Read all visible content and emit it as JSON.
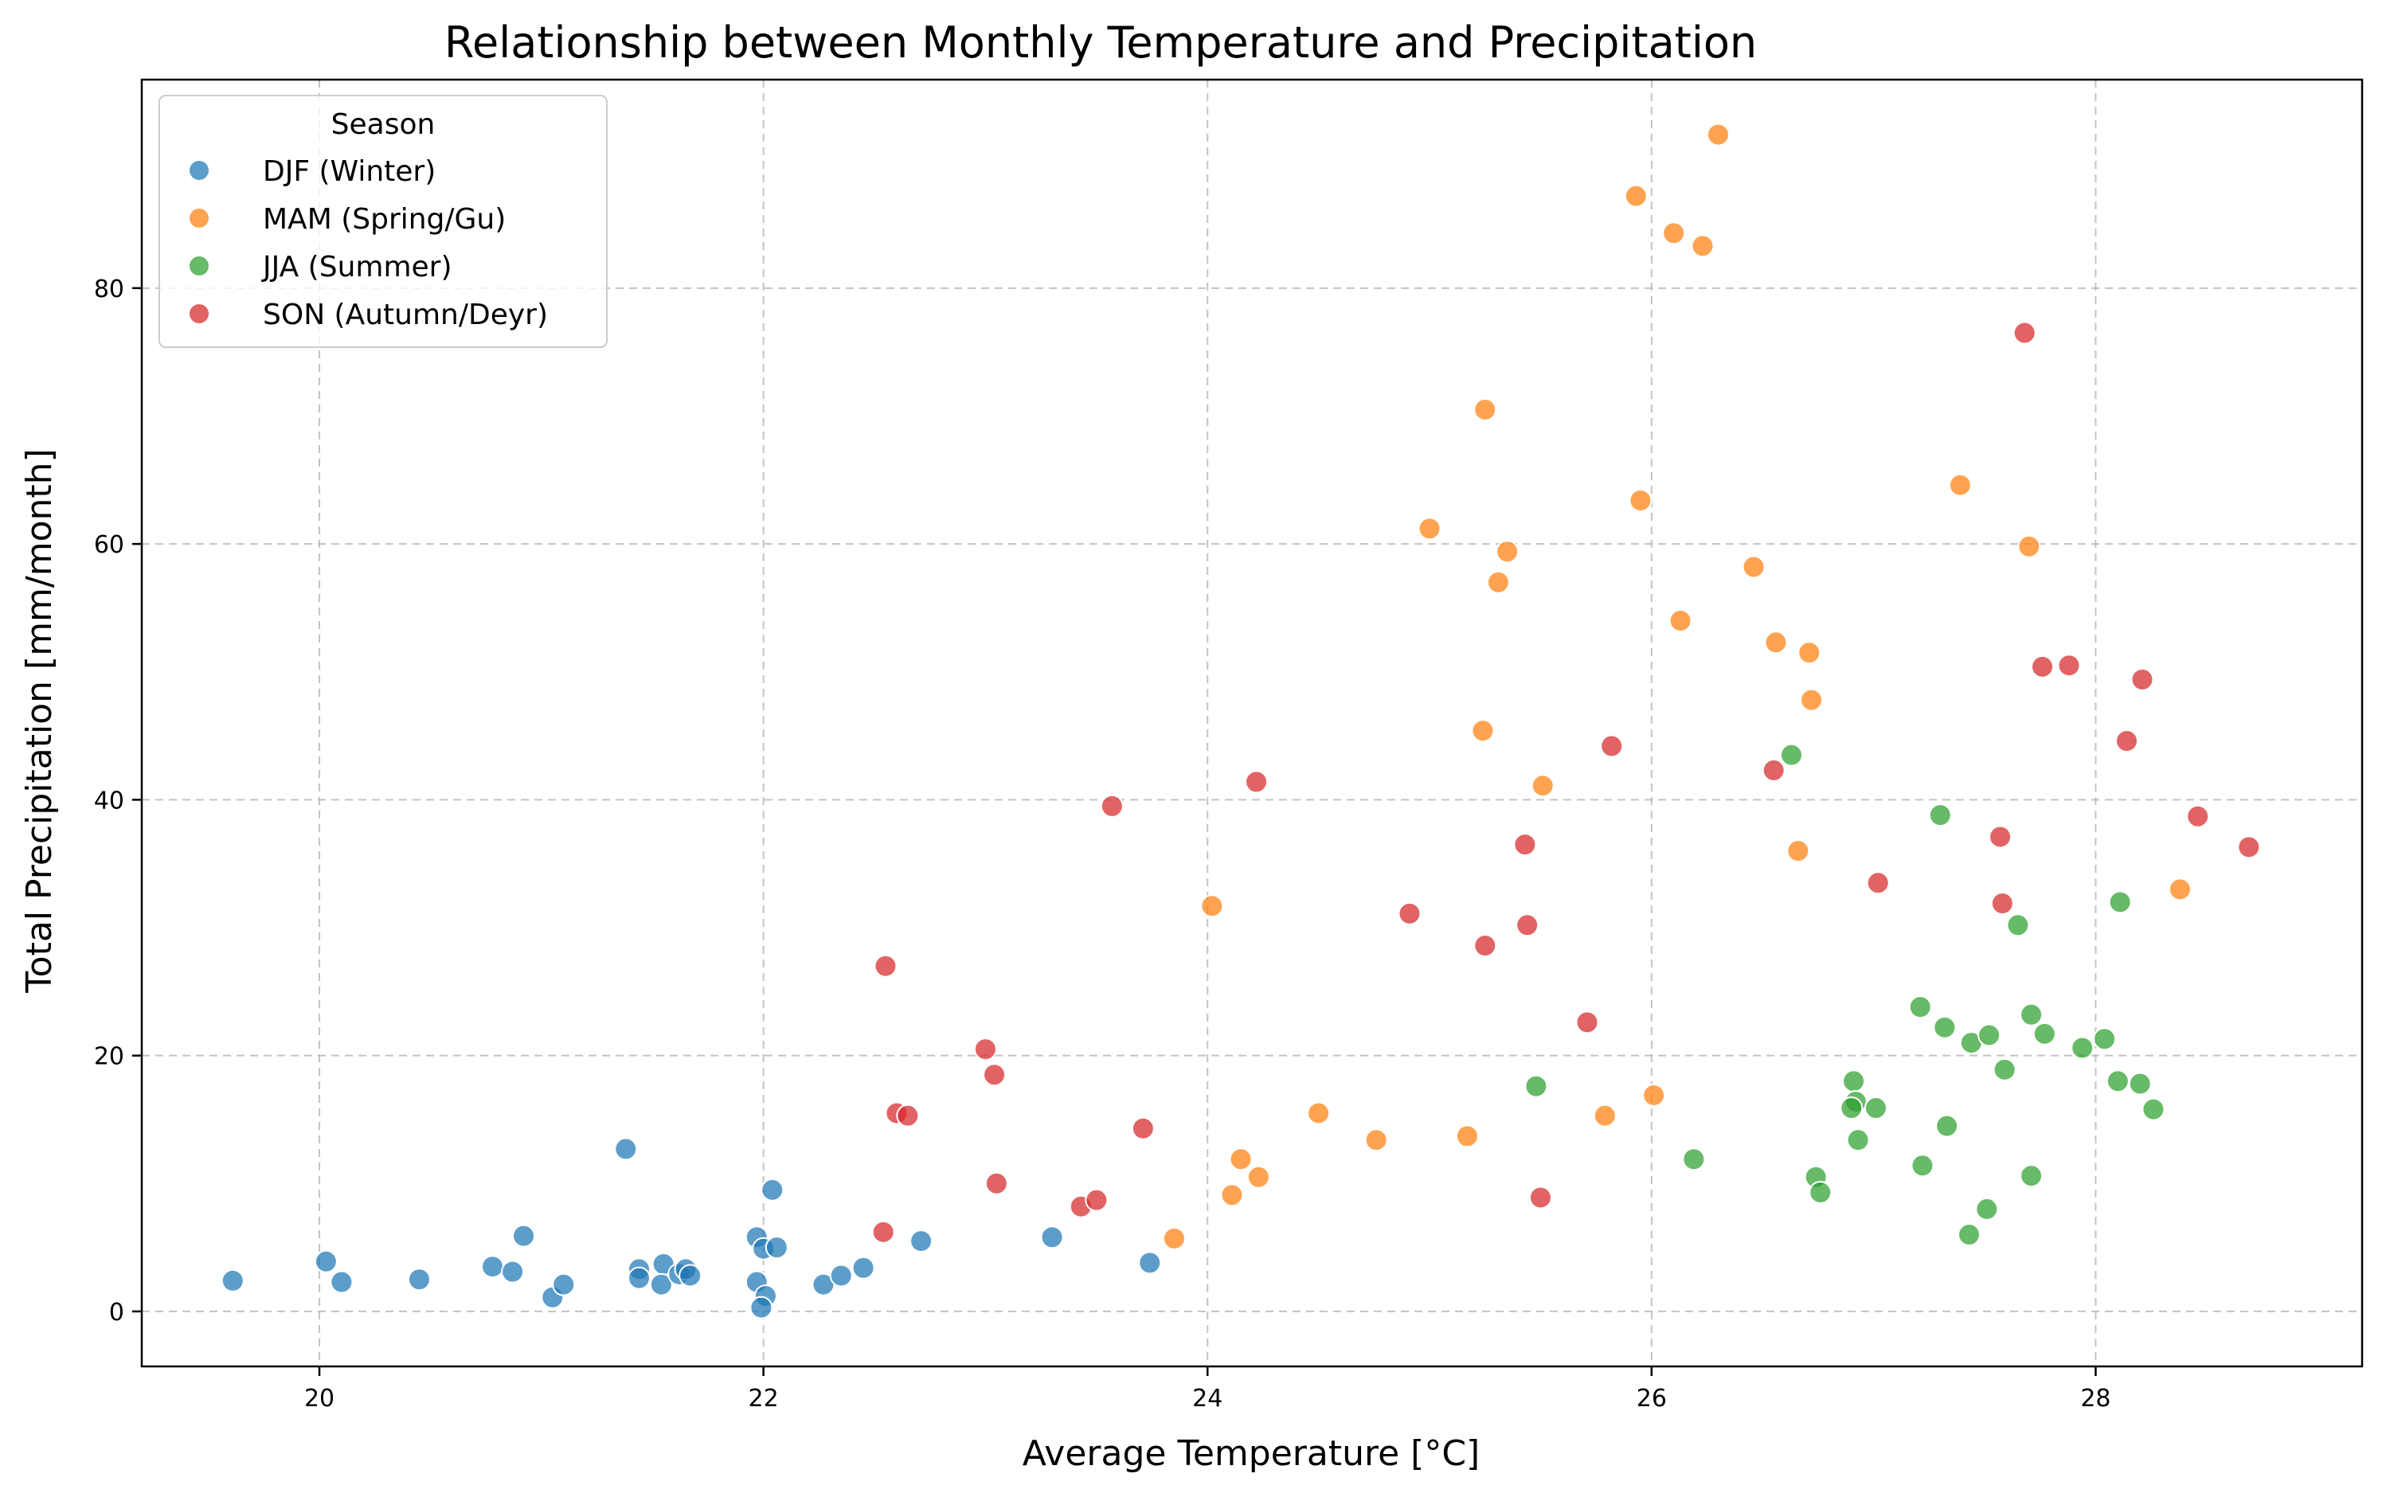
{
  "chart_data": {
    "type": "scatter",
    "title": "Relationship between Monthly Temperature and Precipitation",
    "xlabel": "Average Temperature [°C]",
    "ylabel": "Total Precipitation [mm/month]",
    "xlim": [
      19.2,
      29.2
    ],
    "ylim": [
      -4.3,
      96.3
    ],
    "xticks": [
      20,
      22,
      24,
      26,
      28
    ],
    "yticks": [
      0,
      20,
      40,
      60,
      80
    ],
    "grid": true,
    "legend_title": "Season",
    "legend_position": "top-left",
    "series": [
      {
        "name": "DJF (Winter)",
        "color": "#1f77b4",
        "points": [
          [
            19.61,
            2.4
          ],
          [
            20.03,
            3.9
          ],
          [
            20.1,
            2.3
          ],
          [
            20.45,
            2.5
          ],
          [
            20.78,
            3.5
          ],
          [
            20.87,
            3.1
          ],
          [
            20.92,
            5.9
          ],
          [
            21.05,
            1.1
          ],
          [
            21.1,
            2.1
          ],
          [
            21.38,
            12.7
          ],
          [
            21.44,
            3.3
          ],
          [
            21.44,
            2.6
          ],
          [
            21.55,
            3.7
          ],
          [
            21.54,
            2.1
          ],
          [
            21.62,
            2.9
          ],
          [
            21.65,
            3.3
          ],
          [
            21.67,
            2.8
          ],
          [
            21.97,
            5.8
          ],
          [
            21.97,
            2.3
          ],
          [
            22.0,
            4.9
          ],
          [
            22.01,
            1.2
          ],
          [
            21.99,
            0.3
          ],
          [
            22.04,
            9.5
          ],
          [
            22.06,
            5.0
          ],
          [
            22.27,
            2.1
          ],
          [
            22.35,
            2.8
          ],
          [
            22.45,
            3.4
          ],
          [
            22.71,
            5.5
          ],
          [
            23.3,
            5.8
          ],
          [
            23.74,
            3.8
          ]
        ]
      },
      {
        "name": "MAM (Spring/Gu)",
        "color": "#ff7f0e",
        "points": [
          [
            23.85,
            5.7
          ],
          [
            24.02,
            31.7
          ],
          [
            24.11,
            9.1
          ],
          [
            24.15,
            11.9
          ],
          [
            24.23,
            10.5
          ],
          [
            24.5,
            15.5
          ],
          [
            24.76,
            13.4
          ],
          [
            25.0,
            61.2
          ],
          [
            25.17,
            13.7
          ],
          [
            25.24,
            45.4
          ],
          [
            25.25,
            70.5
          ],
          [
            25.31,
            57.0
          ],
          [
            25.35,
            59.4
          ],
          [
            25.51,
            41.1
          ],
          [
            25.79,
            15.3
          ],
          [
            25.93,
            87.2
          ],
          [
            25.95,
            63.4
          ],
          [
            26.01,
            16.9
          ],
          [
            26.1,
            84.3
          ],
          [
            26.13,
            54.0
          ],
          [
            26.23,
            83.3
          ],
          [
            26.3,
            92.0
          ],
          [
            26.46,
            58.2
          ],
          [
            26.56,
            52.3
          ],
          [
            26.66,
            36.0
          ],
          [
            26.71,
            51.5
          ],
          [
            26.72,
            47.8
          ],
          [
            27.39,
            64.6
          ],
          [
            27.7,
            59.8
          ],
          [
            28.38,
            33.0
          ]
        ]
      },
      {
        "name": "JJA (Summer)",
        "color": "#2ca02c",
        "points": [
          [
            25.48,
            17.6
          ],
          [
            26.19,
            11.9
          ],
          [
            26.63,
            43.5
          ],
          [
            26.74,
            10.5
          ],
          [
            26.76,
            9.3
          ],
          [
            26.91,
            18.0
          ],
          [
            26.92,
            16.4
          ],
          [
            26.9,
            15.9
          ],
          [
            26.93,
            13.4
          ],
          [
            27.01,
            15.9
          ],
          [
            27.21,
            23.8
          ],
          [
            27.22,
            11.4
          ],
          [
            27.3,
            38.8
          ],
          [
            27.32,
            22.2
          ],
          [
            27.33,
            14.5
          ],
          [
            27.43,
            6.0
          ],
          [
            27.44,
            21.0
          ],
          [
            27.52,
            21.6
          ],
          [
            27.51,
            8.0
          ],
          [
            27.59,
            18.9
          ],
          [
            27.65,
            30.2
          ],
          [
            27.71,
            23.2
          ],
          [
            27.71,
            10.6
          ],
          [
            27.77,
            21.7
          ],
          [
            27.94,
            20.6
          ],
          [
            28.04,
            21.3
          ],
          [
            28.11,
            32.0
          ],
          [
            28.1,
            18.0
          ],
          [
            28.2,
            17.8
          ],
          [
            28.26,
            15.8
          ]
        ]
      },
      {
        "name": "SON (Autumn/Deyr)",
        "color": "#d62728",
        "points": [
          [
            22.54,
            6.2
          ],
          [
            22.55,
            27.0
          ],
          [
            22.6,
            15.5
          ],
          [
            22.65,
            15.3
          ],
          [
            23.0,
            20.5
          ],
          [
            23.04,
            18.5
          ],
          [
            23.05,
            10.0
          ],
          [
            23.43,
            8.2
          ],
          [
            23.5,
            8.7
          ],
          [
            23.57,
            39.5
          ],
          [
            23.71,
            14.3
          ],
          [
            24.22,
            41.4
          ],
          [
            24.91,
            31.1
          ],
          [
            25.25,
            28.6
          ],
          [
            25.43,
            36.5
          ],
          [
            25.44,
            30.2
          ],
          [
            25.5,
            8.9
          ],
          [
            25.71,
            22.6
          ],
          [
            25.82,
            44.2
          ],
          [
            26.55,
            42.3
          ],
          [
            27.02,
            33.5
          ],
          [
            27.57,
            37.1
          ],
          [
            27.58,
            31.9
          ],
          [
            27.68,
            76.5
          ],
          [
            27.76,
            50.4
          ],
          [
            27.88,
            50.5
          ],
          [
            28.14,
            44.6
          ],
          [
            28.21,
            49.4
          ],
          [
            28.46,
            38.7
          ],
          [
            28.69,
            36.3
          ]
        ]
      }
    ]
  }
}
